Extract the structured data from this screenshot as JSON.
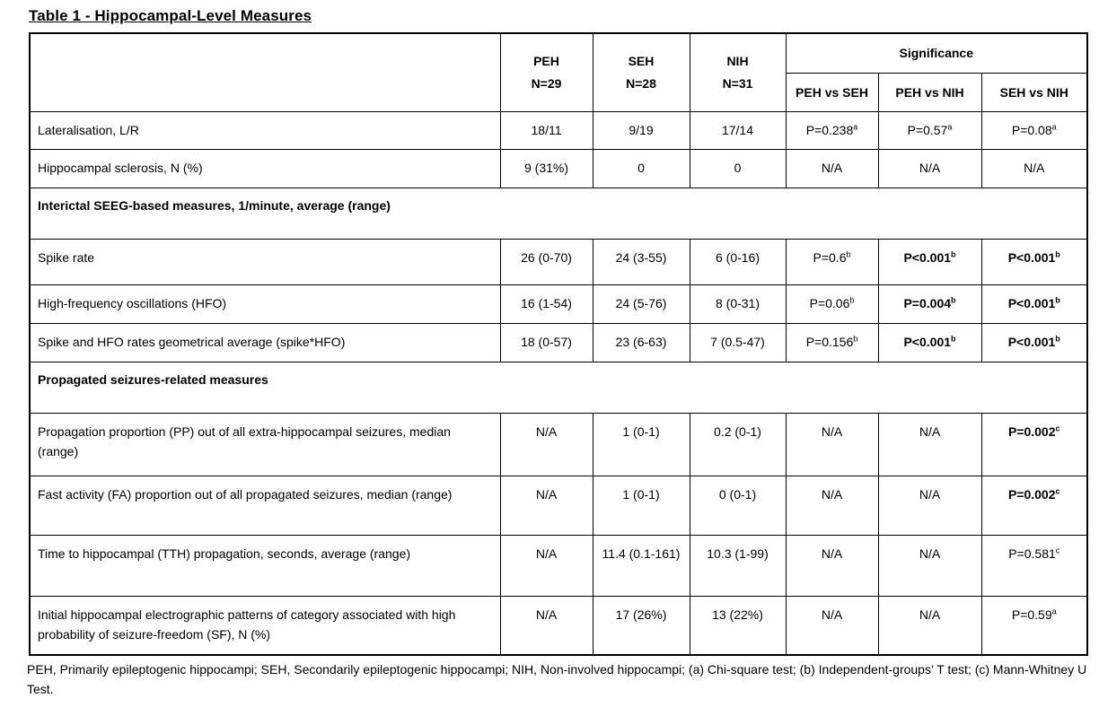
{
  "title": "Table 1 - Hippocampal-Level Measures",
  "table": {
    "group_cols": [
      {
        "name": "PEH",
        "n": "N=29"
      },
      {
        "name": "SEH",
        "n": "N=28"
      },
      {
        "name": "NIH",
        "n": "N=31"
      }
    ],
    "significance_label": "Significance",
    "comparisons": [
      "PEH vs SEH",
      "PEH vs NIH",
      "SEH vs NIH"
    ],
    "rows": [
      {
        "type": "data",
        "label": "Lateralisation, L/R",
        "values": [
          {
            "v": "18/11"
          },
          {
            "v": "9/19"
          },
          {
            "v": "17/14"
          },
          {
            "v": "P=0.238",
            "sup": "a"
          },
          {
            "v": "P=0.57",
            "sup": "a"
          },
          {
            "v": "P=0.08",
            "sup": "a"
          }
        ]
      },
      {
        "type": "data",
        "label": "Hippocampal sclerosis, N (%)",
        "values": [
          {
            "v": "9 (31%)"
          },
          {
            "v": "0"
          },
          {
            "v": "0"
          },
          {
            "v": "N/A"
          },
          {
            "v": "N/A"
          },
          {
            "v": "N/A"
          }
        ]
      },
      {
        "type": "section",
        "label": "Interictal SEEG-based measures, 1/minute, average (range)"
      },
      {
        "type": "data",
        "label": "Spike rate",
        "values": [
          {
            "v": "26 (0-70)"
          },
          {
            "v": "24 (3-55)"
          },
          {
            "v": "6 (0-16)"
          },
          {
            "v": "P=0.6",
            "sup": "b"
          },
          {
            "v": "P<0.001",
            "sup": "b",
            "bold": true
          },
          {
            "v": "P<0.001",
            "sup": "b",
            "bold": true
          }
        ]
      },
      {
        "type": "data",
        "label": "High-frequency oscillations (HFO)",
        "values": [
          {
            "v": "16 (1-54)"
          },
          {
            "v": "24 (5-76)"
          },
          {
            "v": "8 (0-31)"
          },
          {
            "v": "P=0.06",
            "sup": "b"
          },
          {
            "v": "P=0.004",
            "sup": "b",
            "bold": true
          },
          {
            "v": "P<0.001",
            "sup": "b",
            "bold": true
          }
        ]
      },
      {
        "type": "data",
        "label": "Spike and HFO rates geometrical average (spike*HFO)",
        "values": [
          {
            "v": "18 (0-57)"
          },
          {
            "v": "23 (6-63)"
          },
          {
            "v": "7 (0.5-47)"
          },
          {
            "v": "P=0.156",
            "sup": "b"
          },
          {
            "v": "P<0.001",
            "sup": "b",
            "bold": true
          },
          {
            "v": "P<0.001",
            "sup": "b",
            "bold": true
          }
        ]
      },
      {
        "type": "section",
        "label": "Propagated seizures-related measures"
      },
      {
        "type": "data",
        "label": "Propagation proportion (PP) out of all extra-hippocampal seizures, median (range)",
        "values": [
          {
            "v": "N/A"
          },
          {
            "v": "1 (0-1)"
          },
          {
            "v": "0.2 (0-1)"
          },
          {
            "v": "N/A"
          },
          {
            "v": "N/A"
          },
          {
            "v": "P=0.002",
            "sup": "c",
            "bold": true
          }
        ]
      },
      {
        "type": "data",
        "label": "Fast activity (FA) proportion out of all propagated seizures, median (range)",
        "values": [
          {
            "v": "N/A"
          },
          {
            "v": "1 (0-1)"
          },
          {
            "v": "0 (0-1)"
          },
          {
            "v": "N/A"
          },
          {
            "v": "N/A"
          },
          {
            "v": "P=0.002",
            "sup": "c",
            "bold": true
          }
        ]
      },
      {
        "type": "data",
        "label": "Time to hippocampal (TTH) propagation, seconds, average (range)",
        "values": [
          {
            "v": "N/A"
          },
          {
            "v": "11.4 (0.1-161)"
          },
          {
            "v": "10.3 (1-99)"
          },
          {
            "v": "N/A"
          },
          {
            "v": "N/A"
          },
          {
            "v": "P=0.581",
            "sup": "c"
          }
        ]
      },
      {
        "type": "data",
        "label": "Initial hippocampal electrographic patterns of category associated with high probability of seizure-freedom (SF), N (%)",
        "values": [
          {
            "v": "N/A"
          },
          {
            "v": "17 (26%)"
          },
          {
            "v": "13 (22%)"
          },
          {
            "v": "N/A"
          },
          {
            "v": "N/A"
          },
          {
            "v": "P=0.59",
            "sup": "a"
          }
        ]
      }
    ]
  },
  "footnote": "PEH, Primarily epileptogenic hippocampi; SEH, Secondarily epileptogenic hippocampi; NIH, Non-involved hippocampi; (a) Chi-square test; (b) Independent-groups’ T test; (c) Mann-Whitney U Test."
}
